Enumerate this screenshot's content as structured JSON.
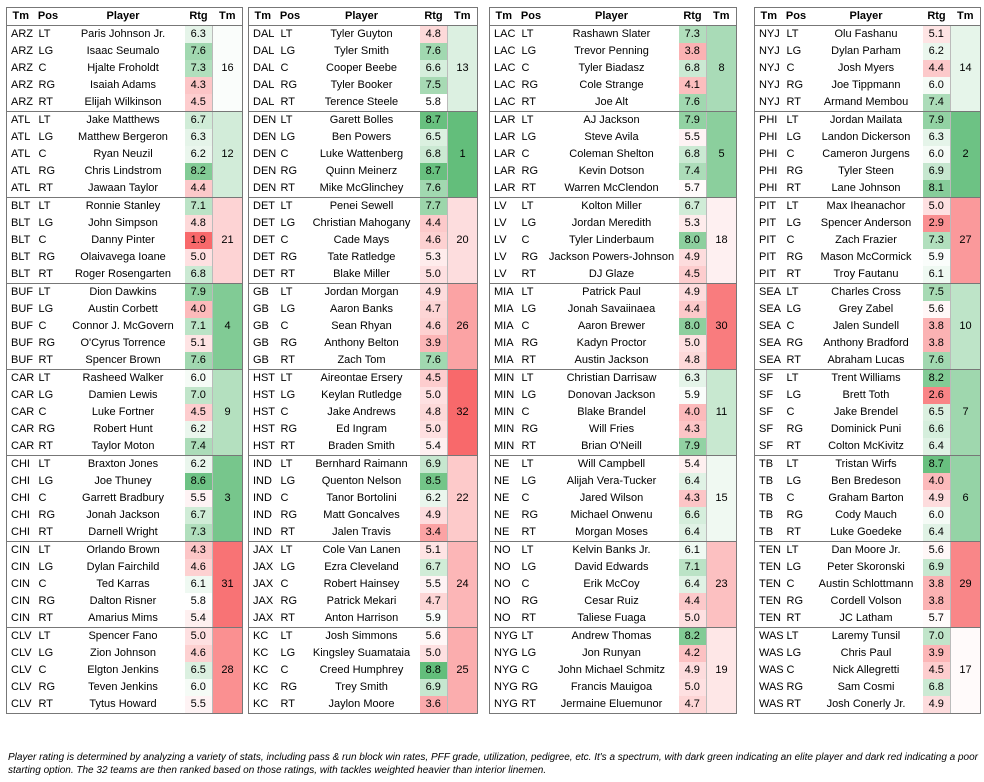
{
  "headers": [
    "Tm",
    "Pos",
    "Player",
    "Rtg",
    "Tm"
  ],
  "positions": [
    "LT",
    "LG",
    "C",
    "RG",
    "RT"
  ],
  "panels": [
    {
      "teams": [
        {
          "team": "ARZ",
          "rank": 16,
          "players": [
            {
              "name": "Paris Johnson Jr.",
              "rating": "6.3"
            },
            {
              "name": "Isaac Seumalo",
              "rating": "7.6"
            },
            {
              "name": "Hjalte Froholdt",
              "rating": "7.3"
            },
            {
              "name": "Isaiah Adams",
              "rating": "4.3"
            },
            {
              "name": "Elijah Wilkinson",
              "rating": "4.5"
            }
          ]
        },
        {
          "team": "ATL",
          "rank": 12,
          "players": [
            {
              "name": "Jake Matthews",
              "rating": "6.7"
            },
            {
              "name": "Matthew Bergeron",
              "rating": "6.3"
            },
            {
              "name": "Ryan Neuzil",
              "rating": "6.2"
            },
            {
              "name": "Chris Lindstrom",
              "rating": "8.2"
            },
            {
              "name": "Jawaan Taylor",
              "rating": "4.4"
            }
          ]
        },
        {
          "team": "BLT",
          "rank": 21,
          "players": [
            {
              "name": "Ronnie Stanley",
              "rating": "7.1"
            },
            {
              "name": "John Simpson",
              "rating": "4.8"
            },
            {
              "name": "Danny Pinter",
              "rating": "1.9"
            },
            {
              "name": "Olaivavega Ioane",
              "rating": "5.0"
            },
            {
              "name": "Roger Rosengarten",
              "rating": "6.8"
            }
          ]
        },
        {
          "team": "BUF",
          "rank": 4,
          "players": [
            {
              "name": "Dion Dawkins",
              "rating": "7.9"
            },
            {
              "name": "Austin Corbett",
              "rating": "4.0"
            },
            {
              "name": "Connor J. McGovern",
              "rating": "7.1"
            },
            {
              "name": "O'Cyrus Torrence",
              "rating": "5.1"
            },
            {
              "name": "Spencer Brown",
              "rating": "7.6"
            }
          ]
        },
        {
          "team": "CAR",
          "rank": 9,
          "players": [
            {
              "name": "Rasheed Walker",
              "rating": "6.0"
            },
            {
              "name": "Damien Lewis",
              "rating": "7.0"
            },
            {
              "name": "Luke Fortner",
              "rating": "4.5"
            },
            {
              "name": "Robert Hunt",
              "rating": "6.2"
            },
            {
              "name": "Taylor Moton",
              "rating": "7.4"
            }
          ]
        },
        {
          "team": "CHI",
          "rank": 3,
          "players": [
            {
              "name": "Braxton Jones",
              "rating": "6.2"
            },
            {
              "name": "Joe Thuney",
              "rating": "8.6"
            },
            {
              "name": "Garrett Bradbury",
              "rating": "5.5"
            },
            {
              "name": "Jonah Jackson",
              "rating": "6.7"
            },
            {
              "name": "Darnell Wright",
              "rating": "7.3"
            }
          ]
        },
        {
          "team": "CIN",
          "rank": 31,
          "players": [
            {
              "name": "Orlando Brown",
              "rating": "4.3"
            },
            {
              "name": "Dylan Fairchild",
              "rating": "4.6"
            },
            {
              "name": "Ted Karras",
              "rating": "6.1"
            },
            {
              "name": "Dalton Risner",
              "rating": "5.8"
            },
            {
              "name": "Amarius Mims",
              "rating": "5.4"
            }
          ]
        },
        {
          "team": "CLV",
          "rank": 28,
          "players": [
            {
              "name": "Spencer Fano",
              "rating": "5.0"
            },
            {
              "name": "Zion Johnson",
              "rating": "4.6"
            },
            {
              "name": "Elgton Jenkins",
              "rating": "6.5"
            },
            {
              "name": "Teven Jenkins",
              "rating": "6.0"
            },
            {
              "name": "Tytus Howard",
              "rating": "5.5"
            }
          ]
        }
      ]
    },
    {
      "teams": [
        {
          "team": "DAL",
          "rank": 13,
          "players": [
            {
              "name": "Tyler Guyton",
              "rating": "4.8"
            },
            {
              "name": "Tyler Smith",
              "rating": "7.6"
            },
            {
              "name": "Cooper Beebe",
              "rating": "6.6"
            },
            {
              "name": "Tyler Booker",
              "rating": "7.5"
            },
            {
              "name": "Terence Steele",
              "rating": "5.8"
            }
          ]
        },
        {
          "team": "DEN",
          "rank": 1,
          "players": [
            {
              "name": "Garett Bolles",
              "rating": "8.7"
            },
            {
              "name": "Ben Powers",
              "rating": "6.5"
            },
            {
              "name": "Luke Wattenberg",
              "rating": "6.8"
            },
            {
              "name": "Quinn Meinerz",
              "rating": "8.7"
            },
            {
              "name": "Mike McGlinchey",
              "rating": "7.6"
            }
          ]
        },
        {
          "team": "DET",
          "rank": 20,
          "players": [
            {
              "name": "Penei Sewell",
              "rating": "7.7"
            },
            {
              "name": "Christian Mahogany",
              "rating": "4.4"
            },
            {
              "name": "Cade Mays",
              "rating": "4.6"
            },
            {
              "name": "Tate Ratledge",
              "rating": "5.3"
            },
            {
              "name": "Blake Miller",
              "rating": "5.0"
            }
          ]
        },
        {
          "team": "GB",
          "rank": 26,
          "players": [
            {
              "name": "Jordan Morgan",
              "rating": "4.9"
            },
            {
              "name": "Aaron Banks",
              "rating": "4.7"
            },
            {
              "name": "Sean Rhyan",
              "rating": "4.6"
            },
            {
              "name": "Anthony Belton",
              "rating": "3.9"
            },
            {
              "name": "Zach Tom",
              "rating": "7.6"
            }
          ]
        },
        {
          "team": "HST",
          "rank": 32,
          "players": [
            {
              "name": "Aireontae Ersery",
              "rating": "4.5"
            },
            {
              "name": "Keylan Rutledge",
              "rating": "5.0"
            },
            {
              "name": "Jake Andrews",
              "rating": "4.8"
            },
            {
              "name": "Ed Ingram",
              "rating": "5.0"
            },
            {
              "name": "Braden Smith",
              "rating": "5.4"
            }
          ]
        },
        {
          "team": "IND",
          "rank": 22,
          "players": [
            {
              "name": "Bernhard Raimann",
              "rating": "6.9"
            },
            {
              "name": "Quenton Nelson",
              "rating": "8.5"
            },
            {
              "name": "Tanor Bortolini",
              "rating": "6.2"
            },
            {
              "name": "Matt Goncalves",
              "rating": "4.9"
            },
            {
              "name": "Jalen Travis",
              "rating": "3.4"
            }
          ]
        },
        {
          "team": "JAX",
          "rank": 24,
          "players": [
            {
              "name": "Cole Van Lanen",
              "rating": "5.1"
            },
            {
              "name": "Ezra Cleveland",
              "rating": "6.7"
            },
            {
              "name": "Robert Hainsey",
              "rating": "5.5"
            },
            {
              "name": "Patrick Mekari",
              "rating": "4.7"
            },
            {
              "name": "Anton Harrison",
              "rating": "5.9"
            }
          ]
        },
        {
          "team": "KC",
          "rank": 25,
          "players": [
            {
              "name": "Josh Simmons",
              "rating": "5.6"
            },
            {
              "name": "Kingsley Suamataia",
              "rating": "5.0"
            },
            {
              "name": "Creed Humphrey",
              "rating": "8.8"
            },
            {
              "name": "Trey Smith",
              "rating": "6.9"
            },
            {
              "name": "Jaylon Moore",
              "rating": "3.6"
            }
          ]
        }
      ]
    },
    {
      "teams": [
        {
          "team": "LAC",
          "rank": 8,
          "players": [
            {
              "name": "Rashawn Slater",
              "rating": "7.3"
            },
            {
              "name": "Trevor Penning",
              "rating": "3.8"
            },
            {
              "name": "Tyler Biadasz",
              "rating": "6.8"
            },
            {
              "name": "Cole Strange",
              "rating": "4.1"
            },
            {
              "name": "Joe Alt",
              "rating": "7.6"
            }
          ]
        },
        {
          "team": "LAR",
          "rank": 5,
          "players": [
            {
              "name": "AJ Jackson",
              "rating": "7.9"
            },
            {
              "name": "Steve Avila",
              "rating": "5.5"
            },
            {
              "name": "Coleman Shelton",
              "rating": "6.8"
            },
            {
              "name": "Kevin Dotson",
              "rating": "7.4"
            },
            {
              "name": "Warren McClendon",
              "rating": "5.7"
            }
          ]
        },
        {
          "team": "LV",
          "rank": 18,
          "players": [
            {
              "name": "Kolton Miller",
              "rating": "6.7"
            },
            {
              "name": "Jordan Meredith",
              "rating": "5.3"
            },
            {
              "name": "Tyler Linderbaum",
              "rating": "8.0"
            },
            {
              "name": "Jackson Powers-Johnson",
              "rating": "4.9"
            },
            {
              "name": "DJ Glaze",
              "rating": "4.5"
            }
          ]
        },
        {
          "team": "MIA",
          "rank": 30,
          "players": [
            {
              "name": "Patrick Paul",
              "rating": "4.9"
            },
            {
              "name": "Jonah Savaiinaea",
              "rating": "4.4"
            },
            {
              "name": "Aaron Brewer",
              "rating": "8.0"
            },
            {
              "name": "Kadyn Proctor",
              "rating": "5.0"
            },
            {
              "name": "Austin Jackson",
              "rating": "4.8"
            }
          ]
        },
        {
          "team": "MIN",
          "rank": 11,
          "players": [
            {
              "name": "Christian Darrisaw",
              "rating": "6.3"
            },
            {
              "name": "Donovan Jackson",
              "rating": "5.9"
            },
            {
              "name": "Blake Brandel",
              "rating": "4.0"
            },
            {
              "name": "Will Fries",
              "rating": "4.3"
            },
            {
              "name": "Brian O'Neill",
              "rating": "7.9"
            }
          ]
        },
        {
          "team": "NE",
          "rank": 15,
          "players": [
            {
              "name": "Will Campbell",
              "rating": "5.4"
            },
            {
              "name": "Alijah Vera-Tucker",
              "rating": "6.4"
            },
            {
              "name": "Jared Wilson",
              "rating": "4.3"
            },
            {
              "name": "Michael Onwenu",
              "rating": "6.6"
            },
            {
              "name": "Morgan Moses",
              "rating": "6.4"
            }
          ]
        },
        {
          "team": "NO",
          "rank": 23,
          "players": [
            {
              "name": "Kelvin Banks Jr.",
              "rating": "6.1"
            },
            {
              "name": "David Edwards",
              "rating": "7.1"
            },
            {
              "name": "Erik McCoy",
              "rating": "6.4"
            },
            {
              "name": "Cesar Ruiz",
              "rating": "4.4"
            },
            {
              "name": "Taliese Fuaga",
              "rating": "5.0"
            }
          ]
        },
        {
          "team": "NYG",
          "rank": 19,
          "players": [
            {
              "name": "Andrew Thomas",
              "rating": "8.2"
            },
            {
              "name": "Jon Runyan",
              "rating": "4.2"
            },
            {
              "name": "John Michael Schmitz",
              "rating": "4.9"
            },
            {
              "name": "Francis Mauigoa",
              "rating": "5.0"
            },
            {
              "name": "Jermaine Eluemunor",
              "rating": "4.7"
            }
          ]
        }
      ]
    },
    {
      "teams": [
        {
          "team": "NYJ",
          "rank": 14,
          "players": [
            {
              "name": "Olu Fashanu",
              "rating": "5.1"
            },
            {
              "name": "Dylan Parham",
              "rating": "6.2"
            },
            {
              "name": "Josh Myers",
              "rating": "4.4"
            },
            {
              "name": "Joe Tippmann",
              "rating": "6.0"
            },
            {
              "name": "Armand Membou",
              "rating": "7.4"
            }
          ]
        },
        {
          "team": "PHI",
          "rank": 2,
          "players": [
            {
              "name": "Jordan Mailata",
              "rating": "7.9"
            },
            {
              "name": "Landon Dickerson",
              "rating": "6.3"
            },
            {
              "name": "Cameron Jurgens",
              "rating": "6.0"
            },
            {
              "name": "Tyler Steen",
              "rating": "6.9"
            },
            {
              "name": "Lane Johnson",
              "rating": "8.1"
            }
          ]
        },
        {
          "team": "PIT",
          "rank": 27,
          "players": [
            {
              "name": "Max Iheanachor",
              "rating": "5.0"
            },
            {
              "name": "Spencer Anderson",
              "rating": "2.9"
            },
            {
              "name": "Zach Frazier",
              "rating": "7.3"
            },
            {
              "name": "Mason McCormick",
              "rating": "5.9"
            },
            {
              "name": "Troy Fautanu",
              "rating": "6.1"
            }
          ]
        },
        {
          "team": "SEA",
          "rank": 10,
          "players": [
            {
              "name": "Charles Cross",
              "rating": "7.5"
            },
            {
              "name": "Grey Zabel",
              "rating": "5.6"
            },
            {
              "name": "Jalen Sundell",
              "rating": "3.8"
            },
            {
              "name": "Anthony Bradford",
              "rating": "3.8"
            },
            {
              "name": "Abraham Lucas",
              "rating": "7.6"
            }
          ]
        },
        {
          "team": "SF",
          "rank": 7,
          "players": [
            {
              "name": "Trent Williams",
              "rating": "8.2"
            },
            {
              "name": "Brett Toth",
              "rating": "2.6"
            },
            {
              "name": "Jake Brendel",
              "rating": "6.5"
            },
            {
              "name": "Dominick Puni",
              "rating": "6.6"
            },
            {
              "name": "Colton McKivitz",
              "rating": "6.4"
            }
          ]
        },
        {
          "team": "TB",
          "rank": 6,
          "players": [
            {
              "name": "Tristan Wirfs",
              "rating": "8.7"
            },
            {
              "name": "Ben Bredeson",
              "rating": "4.0"
            },
            {
              "name": "Graham Barton",
              "rating": "4.9"
            },
            {
              "name": "Cody Mauch",
              "rating": "6.0"
            },
            {
              "name": "Luke Goedeke",
              "rating": "6.4"
            }
          ]
        },
        {
          "team": "TEN",
          "rank": 29,
          "players": [
            {
              "name": "Dan Moore Jr.",
              "rating": "5.6"
            },
            {
              "name": "Peter Skoronski",
              "rating": "6.9"
            },
            {
              "name": "Austin Schlottmann",
              "rating": "3.8"
            },
            {
              "name": "Cordell Volson",
              "rating": "3.8"
            },
            {
              "name": "JC Latham",
              "rating": "5.7"
            }
          ]
        },
        {
          "team": "WAS",
          "rank": 17,
          "players": [
            {
              "name": "Laremy Tunsil",
              "rating": "7.0"
            },
            {
              "name": "Chris Paul",
              "rating": "3.9"
            },
            {
              "name": "Nick Allegretti",
              "rating": "4.5"
            },
            {
              "name": "Sam Cosmi",
              "rating": "6.8"
            },
            {
              "name": "Josh Conerly Jr.",
              "rating": "4.9"
            }
          ]
        }
      ]
    }
  ],
  "footnote": "Player rating is determined by analyzing a variety of stats, including pass & run block win rates, PFF grade, utilization, pedigree, etc. It's a spectrum, with dark green indicating an elite player and dark red indicating a poor starting option. The 32 teams are then ranked based on those ratings, with tackles weighted heavier than interior linemen."
}
